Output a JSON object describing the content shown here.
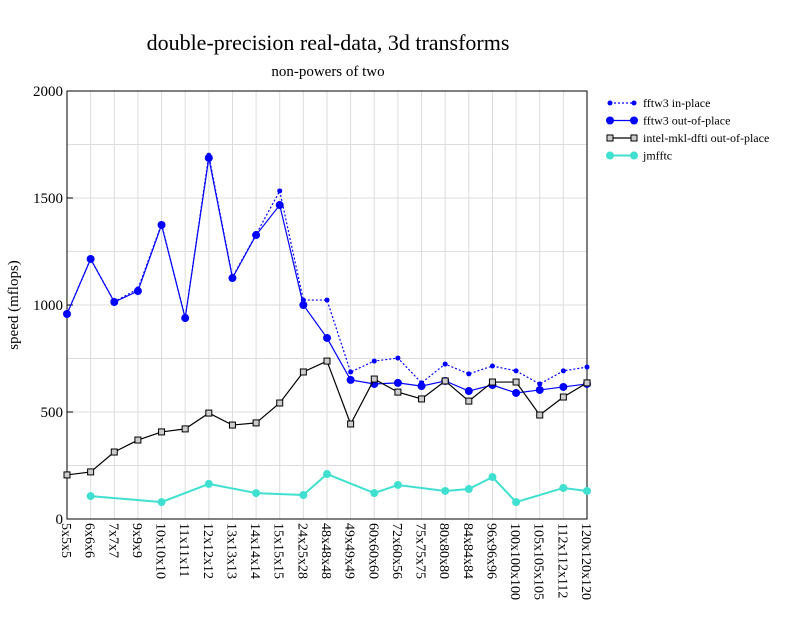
{
  "chart_data": {
    "type": "line",
    "title": "double-precision real-data, 3d transforms",
    "subtitle": "non-powers of two",
    "xlabel": "",
    "ylabel": "speed (mflops)",
    "ylim": [
      0,
      2000
    ],
    "yticks": [
      0,
      500,
      1000,
      1500,
      2000
    ],
    "grid": true,
    "legend_position": "right",
    "categories": [
      "5x5x5",
      "6x6x6",
      "7x7x7",
      "9x9x9",
      "10x10x10",
      "11x11x11",
      "12x12x12",
      "13x13x13",
      "14x14x14",
      "15x15x15",
      "24x25x28",
      "48x48x48",
      "49x49x49",
      "60x60x60",
      "72x60x56",
      "75x75x75",
      "80x80x80",
      "84x84x84",
      "96x96x96",
      "100x100x100",
      "105x105x105",
      "112x112x112",
      "120x120x120"
    ],
    "series": [
      {
        "name": "fftw3 in-place",
        "color": "#0000ff",
        "style": "dotted",
        "marker": "small-dot",
        "values": [
          960,
          1215,
          1015,
          1075,
          1378,
          940,
          1700,
          1130,
          1330,
          1533,
          1023,
          1023,
          687,
          738,
          752,
          636,
          724,
          678,
          715,
          692,
          631,
          692,
          710
        ]
      },
      {
        "name": "fftw3 out-of-place",
        "color": "#0000ff",
        "style": "solid",
        "marker": "dot",
        "values": [
          958,
          1215,
          1014,
          1065,
          1374,
          939,
          1687,
          1126,
          1327,
          1467,
          1000,
          846,
          650,
          631,
          636,
          621,
          645,
          598,
          626,
          589,
          603,
          617,
          631
        ]
      },
      {
        "name": "intel-mkl-dfti out-of-place",
        "color": "#000000",
        "style": "solid",
        "marker": "square",
        "values": [
          206,
          220,
          313,
          369,
          407,
          421,
          495,
          439,
          449,
          542,
          687,
          738,
          444,
          654,
          593,
          561,
          645,
          551,
          640,
          640,
          486,
          570,
          636
        ]
      },
      {
        "name": "jmfftc",
        "color": "#40e0d0",
        "style": "solid",
        "marker": "dot",
        "values": [
          null,
          107,
          null,
          null,
          79,
          null,
          164,
          null,
          121,
          null,
          112,
          210,
          null,
          121,
          159,
          null,
          131,
          140,
          196,
          79,
          null,
          145,
          131
        ]
      }
    ]
  }
}
